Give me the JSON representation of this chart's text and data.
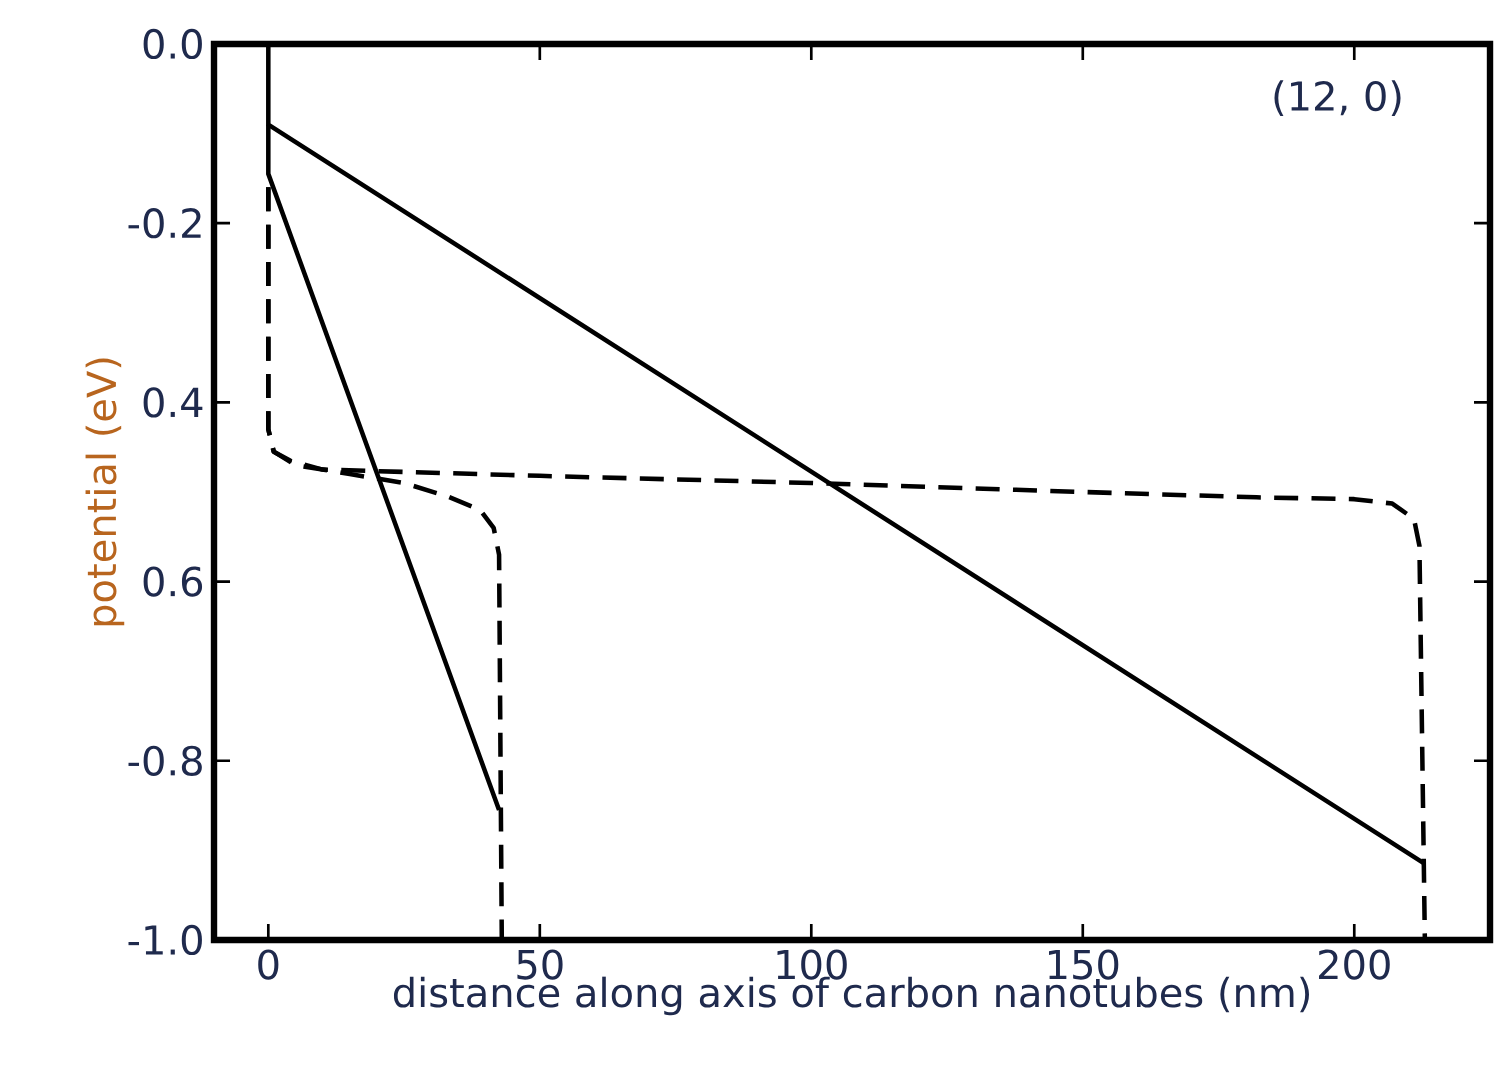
{
  "chart_data": {
    "type": "line",
    "xlabel": "distance along axis of carbon nanotubes (nm)",
    "ylabel": "potential (eV)",
    "annotations": [
      "(12, 0)"
    ],
    "xlim": [
      -10,
      225
    ],
    "ylim": [
      -1.0,
      0.0
    ],
    "xticks": [
      0,
      50,
      100,
      150,
      200
    ],
    "yticks": [
      {
        "value": 0.0,
        "label": "0.0"
      },
      {
        "value": -0.2,
        "label": "-0.2"
      },
      {
        "value": -0.4,
        "label": "0.4"
      },
      {
        "value": -0.6,
        "label": "0.6"
      },
      {
        "value": -0.8,
        "label": "-0.8"
      },
      {
        "value": -1.0,
        "label": "-1.0"
      }
    ],
    "series": [
      {
        "color": "#000000",
        "line_style": "solid",
        "x": [
          0,
          0,
          213
        ],
        "values": [
          0.0,
          -0.09,
          -0.915
        ]
      },
      {
        "color": "#000000",
        "line_style": "solid",
        "x": [
          0,
          0,
          42.5
        ],
        "values": [
          -0.09,
          -0.145,
          -0.855
        ]
      },
      {
        "color": "#000000",
        "line_style": "dashed",
        "x": [
          0,
          0,
          1,
          4,
          10,
          50,
          100,
          150,
          182,
          200,
          207,
          211,
          212,
          213
        ],
        "values": [
          -0.16,
          -0.43,
          -0.455,
          -0.465,
          -0.475,
          -0.482,
          -0.49,
          -0.5,
          -0.506,
          -0.508,
          -0.513,
          -0.53,
          -0.56,
          -1.0
        ]
      },
      {
        "color": "#000000",
        "line_style": "dashed",
        "x": [
          0,
          0,
          1,
          5,
          15,
          25,
          33,
          39,
          41.5,
          42.5,
          43
        ],
        "values": [
          -0.16,
          -0.43,
          -0.455,
          -0.47,
          -0.48,
          -0.49,
          -0.505,
          -0.52,
          -0.54,
          -0.57,
          -1.0
        ]
      }
    ]
  }
}
